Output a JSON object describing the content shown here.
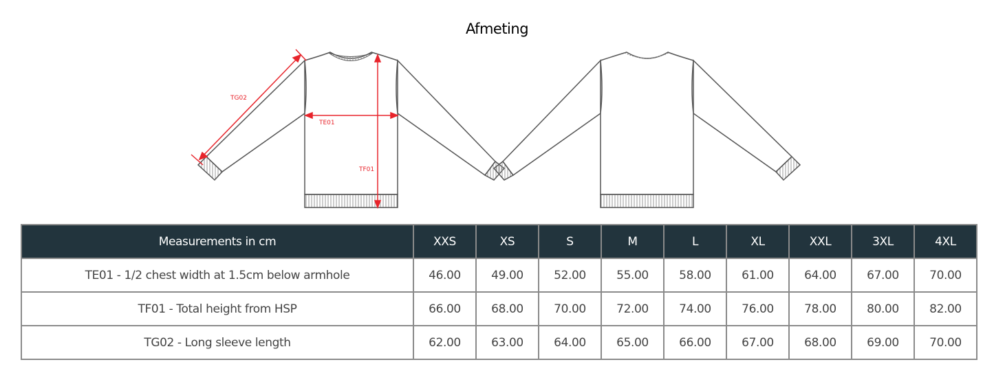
{
  "title": "Afmeting",
  "illustration": {
    "labels": {
      "sleeve": "TG02",
      "chest": "TE01",
      "height": "TF01"
    },
    "measure_color": "#e8242b"
  },
  "table": {
    "header_label": "Measurements in cm",
    "header_color": "#22343d",
    "sizes": [
      "XXS",
      "XS",
      "S",
      "M",
      "L",
      "XL",
      "XXL",
      "3XL",
      "4XL"
    ],
    "rows": [
      {
        "label": "TE01 - 1/2 chest width at 1.5cm below armhole",
        "values": [
          "46.00",
          "49.00",
          "52.00",
          "55.00",
          "58.00",
          "61.00",
          "64.00",
          "67.00",
          "70.00"
        ]
      },
      {
        "label": "TF01 - Total height from HSP",
        "values": [
          "66.00",
          "68.00",
          "70.00",
          "72.00",
          "74.00",
          "76.00",
          "78.00",
          "80.00",
          "82.00"
        ]
      },
      {
        "label": "TG02 - Long sleeve length",
        "values": [
          "62.00",
          "63.00",
          "64.00",
          "65.00",
          "66.00",
          "67.00",
          "68.00",
          "69.00",
          "70.00"
        ]
      }
    ]
  }
}
